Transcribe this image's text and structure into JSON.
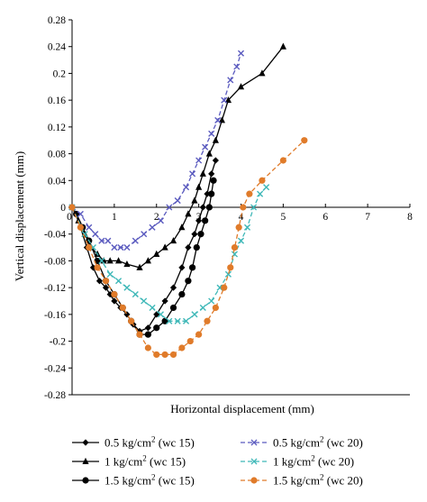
{
  "chart_data": {
    "type": "line",
    "xlabel": "Horizontal displacement (mm)",
    "ylabel": "Vertical displacement (mm)",
    "xlim": [
      0,
      8
    ],
    "ylim": [
      -0.28,
      0.28
    ],
    "x_ticks": [
      "0",
      "1",
      "2",
      "3",
      "4",
      "5",
      "6",
      "7",
      "8"
    ],
    "y_ticks": [
      "0.28",
      "0.24",
      "0.2",
      "0.16",
      "0.12",
      "0.08",
      "0.04",
      "0",
      "-0.04",
      "-0.08",
      "-0.12",
      "-0.16",
      "-0.2",
      "-0.24",
      "-0.28"
    ],
    "grid": false,
    "legend_position": "bottom",
    "series": [
      {
        "label_main": "0.5 kg/cm",
        "label_sup": "2",
        "label_tail": " (wc 15)",
        "color": "#000000",
        "marker": "diamond",
        "dash": "solid",
        "points": [
          [
            0,
            0
          ],
          [
            0.1,
            -0.01
          ],
          [
            0.2,
            -0.03
          ],
          [
            0.35,
            -0.06
          ],
          [
            0.5,
            -0.09
          ],
          [
            0.65,
            -0.11
          ],
          [
            0.8,
            -0.12
          ],
          [
            0.9,
            -0.13
          ],
          [
            1.0,
            -0.14
          ],
          [
            1.15,
            -0.15
          ],
          [
            1.3,
            -0.16
          ],
          [
            1.45,
            -0.175
          ],
          [
            1.6,
            -0.185
          ],
          [
            1.8,
            -0.18
          ],
          [
            2.0,
            -0.16
          ],
          [
            2.2,
            -0.14
          ],
          [
            2.4,
            -0.12
          ],
          [
            2.6,
            -0.09
          ],
          [
            2.75,
            -0.06
          ],
          [
            2.9,
            -0.04
          ],
          [
            3.0,
            -0.02
          ],
          [
            3.1,
            0.0
          ],
          [
            3.2,
            0.02
          ],
          [
            3.3,
            0.05
          ],
          [
            3.4,
            0.07
          ]
        ]
      },
      {
        "label_main": "1 kg/cm",
        "label_sup": "2",
        "label_tail": " (wc 15)",
        "color": "#000000",
        "marker": "triangle",
        "dash": "solid",
        "points": [
          [
            0,
            0
          ],
          [
            0.15,
            -0.02
          ],
          [
            0.3,
            -0.04
          ],
          [
            0.45,
            -0.06
          ],
          [
            0.6,
            -0.07
          ],
          [
            0.75,
            -0.08
          ],
          [
            0.9,
            -0.08
          ],
          [
            1.1,
            -0.08
          ],
          [
            1.3,
            -0.085
          ],
          [
            1.6,
            -0.09
          ],
          [
            1.8,
            -0.08
          ],
          [
            2.0,
            -0.07
          ],
          [
            2.2,
            -0.06
          ],
          [
            2.4,
            -0.05
          ],
          [
            2.6,
            -0.03
          ],
          [
            2.75,
            -0.01
          ],
          [
            2.9,
            0.01
          ],
          [
            3.0,
            0.03
          ],
          [
            3.1,
            0.05
          ],
          [
            3.25,
            0.08
          ],
          [
            3.4,
            0.1
          ],
          [
            3.55,
            0.13
          ],
          [
            3.7,
            0.16
          ],
          [
            4.0,
            0.18
          ],
          [
            4.5,
            0.2
          ],
          [
            5.0,
            0.24
          ]
        ]
      },
      {
        "label_main": "1.5 kg/cm",
        "label_sup": "2",
        "label_tail": " (wc 15)",
        "color": "#000000",
        "marker": "circle",
        "dash": "solid",
        "points": [
          [
            0,
            0
          ],
          [
            0.1,
            -0.01
          ],
          [
            0.25,
            -0.03
          ],
          [
            0.4,
            -0.05
          ],
          [
            0.6,
            -0.08
          ],
          [
            0.8,
            -0.11
          ],
          [
            1.0,
            -0.13
          ],
          [
            1.2,
            -0.15
          ],
          [
            1.4,
            -0.17
          ],
          [
            1.6,
            -0.19
          ],
          [
            1.8,
            -0.19
          ],
          [
            2.0,
            -0.18
          ],
          [
            2.2,
            -0.17
          ],
          [
            2.4,
            -0.15
          ],
          [
            2.6,
            -0.13
          ],
          [
            2.75,
            -0.11
          ],
          [
            2.85,
            -0.09
          ],
          [
            2.95,
            -0.06
          ],
          [
            3.05,
            -0.04
          ],
          [
            3.15,
            -0.02
          ],
          [
            3.25,
            0.0
          ],
          [
            3.3,
            0.02
          ],
          [
            3.35,
            0.04
          ]
        ]
      },
      {
        "label_main": "0.5 kg/cm",
        "label_sup": "2",
        "label_tail": " (wc 20)",
        "color": "#5b5bbf",
        "marker": "x",
        "dash": "dashed",
        "points": [
          [
            0,
            0
          ],
          [
            0.2,
            -0.01
          ],
          [
            0.4,
            -0.03
          ],
          [
            0.55,
            -0.04
          ],
          [
            0.7,
            -0.05
          ],
          [
            0.85,
            -0.05
          ],
          [
            1.0,
            -0.06
          ],
          [
            1.15,
            -0.06
          ],
          [
            1.3,
            -0.06
          ],
          [
            1.5,
            -0.05
          ],
          [
            1.7,
            -0.04
          ],
          [
            1.9,
            -0.03
          ],
          [
            2.1,
            -0.02
          ],
          [
            2.3,
            0.0
          ],
          [
            2.5,
            0.01
          ],
          [
            2.7,
            0.03
          ],
          [
            2.85,
            0.05
          ],
          [
            3.0,
            0.07
          ],
          [
            3.15,
            0.09
          ],
          [
            3.3,
            0.11
          ],
          [
            3.45,
            0.13
          ],
          [
            3.6,
            0.16
          ],
          [
            3.75,
            0.19
          ],
          [
            3.9,
            0.21
          ],
          [
            4.0,
            0.23
          ]
        ]
      },
      {
        "label_main": "1 kg/cm",
        "label_sup": "2",
        "label_tail": " (wc 20)",
        "color": "#3fb8b8",
        "marker": "x",
        "dash": "dashed",
        "points": [
          [
            0,
            0
          ],
          [
            0.3,
            -0.04
          ],
          [
            0.5,
            -0.06
          ],
          [
            0.7,
            -0.08
          ],
          [
            0.9,
            -0.1
          ],
          [
            1.1,
            -0.11
          ],
          [
            1.3,
            -0.12
          ],
          [
            1.5,
            -0.13
          ],
          [
            1.7,
            -0.14
          ],
          [
            1.9,
            -0.15
          ],
          [
            2.1,
            -0.16
          ],
          [
            2.3,
            -0.17
          ],
          [
            2.5,
            -0.17
          ],
          [
            2.7,
            -0.17
          ],
          [
            2.9,
            -0.16
          ],
          [
            3.1,
            -0.15
          ],
          [
            3.3,
            -0.14
          ],
          [
            3.5,
            -0.12
          ],
          [
            3.7,
            -0.1
          ],
          [
            3.85,
            -0.07
          ],
          [
            4.0,
            -0.05
          ],
          [
            4.15,
            -0.03
          ],
          [
            4.3,
            0.0
          ],
          [
            4.45,
            0.02
          ],
          [
            4.6,
            0.03
          ]
        ]
      },
      {
        "label_main": "1.5 kg/cm",
        "label_sup": "2",
        "label_tail": " (wc 20)",
        "color": "#e07b2a",
        "marker": "circle",
        "dash": "dashed",
        "points": [
          [
            0,
            0
          ],
          [
            0.2,
            -0.03
          ],
          [
            0.4,
            -0.06
          ],
          [
            0.6,
            -0.09
          ],
          [
            0.8,
            -0.11
          ],
          [
            1.0,
            -0.13
          ],
          [
            1.2,
            -0.15
          ],
          [
            1.4,
            -0.17
          ],
          [
            1.6,
            -0.19
          ],
          [
            1.8,
            -0.21
          ],
          [
            2.0,
            -0.22
          ],
          [
            2.2,
            -0.22
          ],
          [
            2.4,
            -0.22
          ],
          [
            2.6,
            -0.21
          ],
          [
            2.8,
            -0.2
          ],
          [
            3.0,
            -0.19
          ],
          [
            3.2,
            -0.17
          ],
          [
            3.4,
            -0.15
          ],
          [
            3.6,
            -0.12
          ],
          [
            3.75,
            -0.09
          ],
          [
            3.85,
            -0.06
          ],
          [
            3.95,
            -0.03
          ],
          [
            4.05,
            0.0
          ],
          [
            4.2,
            0.02
          ],
          [
            4.5,
            0.04
          ],
          [
            5.0,
            0.07
          ],
          [
            5.5,
            0.1
          ]
        ]
      }
    ]
  }
}
